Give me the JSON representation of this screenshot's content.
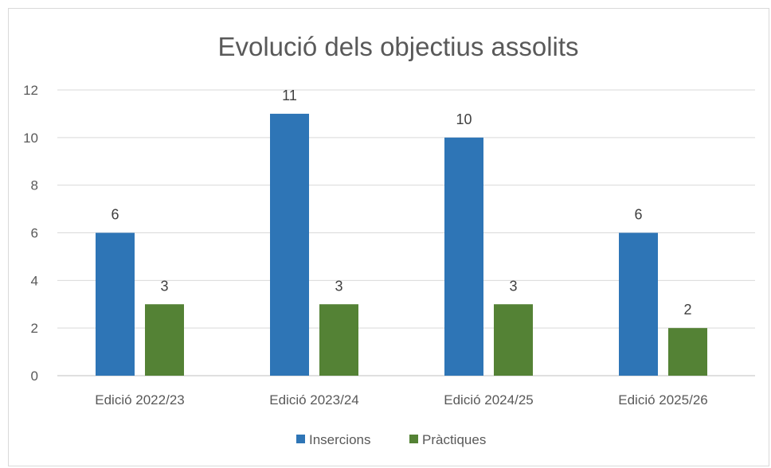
{
  "chart_data": {
    "type": "bar",
    "title": "Evolució dels objectius assolits",
    "xlabel": "",
    "ylabel": "",
    "categories": [
      "Edició 2022/23",
      "Edició 2023/24",
      "Edició 2024/25",
      "Edició 2025/26"
    ],
    "series": [
      {
        "name": "Insercions",
        "values": [
          6,
          11,
          10,
          6
        ],
        "color": "#2e75b6"
      },
      {
        "name": "Pràctiques",
        "values": [
          3,
          3,
          3,
          2
        ],
        "color": "#548235"
      }
    ],
    "ylim": [
      0,
      12
    ],
    "yticks": [
      0,
      2,
      4,
      6,
      8,
      10,
      12
    ],
    "grid": true,
    "data_labels": true,
    "legend_position": "bottom"
  }
}
